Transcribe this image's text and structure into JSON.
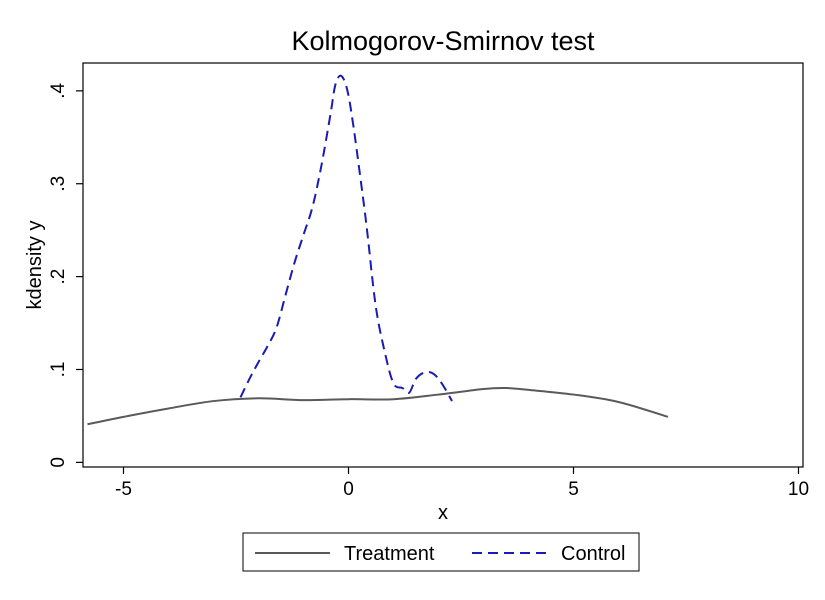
{
  "chart_data": {
    "type": "line",
    "title": "Kolmogorov-Smirnov test",
    "xlabel": "x",
    "ylabel": "kdensity y",
    "xlim": [
      -5.9,
      10.1
    ],
    "ylim": [
      -0.005,
      0.43
    ],
    "xticks": [
      -5,
      0,
      5,
      10
    ],
    "xtick_labels": [
      "-5",
      "0",
      "5",
      "10"
    ],
    "yticks": [
      0,
      0.1,
      0.2,
      0.3,
      0.4
    ],
    "ytick_labels": [
      "0",
      ".1",
      ".2",
      ".3",
      ".4"
    ],
    "grid": false,
    "legend_position": "bottom",
    "series": [
      {
        "name": "Treatment",
        "color": "#5a5a5a",
        "style": "solid",
        "x": [
          -5.8,
          -5.0,
          -4.0,
          -3.0,
          -2.0,
          -1.0,
          0.0,
          1.0,
          2.0,
          3.0,
          3.5,
          4.0,
          5.0,
          6.0,
          7.1
        ],
        "y": [
          0.041,
          0.049,
          0.058,
          0.066,
          0.069,
          0.067,
          0.068,
          0.068,
          0.073,
          0.079,
          0.08,
          0.078,
          0.073,
          0.065,
          0.049
        ]
      },
      {
        "name": "Control",
        "color": "#1a1ab4",
        "style": "dashed",
        "x": [
          -2.4,
          -2.2,
          -2.0,
          -1.8,
          -1.6,
          -1.4,
          -1.2,
          -1.0,
          -0.8,
          -0.6,
          -0.4,
          -0.3,
          -0.2,
          -0.1,
          0.0,
          0.1,
          0.2,
          0.4,
          0.6,
          0.8,
          1.0,
          1.2,
          1.35,
          1.5,
          1.7,
          1.9,
          2.1,
          2.3
        ],
        "y": [
          0.07,
          0.09,
          0.108,
          0.125,
          0.145,
          0.18,
          0.215,
          0.245,
          0.275,
          0.32,
          0.375,
          0.405,
          0.416,
          0.412,
          0.395,
          0.365,
          0.33,
          0.255,
          0.17,
          0.12,
          0.085,
          0.08,
          0.075,
          0.09,
          0.097,
          0.095,
          0.083,
          0.066
        ]
      }
    ]
  }
}
